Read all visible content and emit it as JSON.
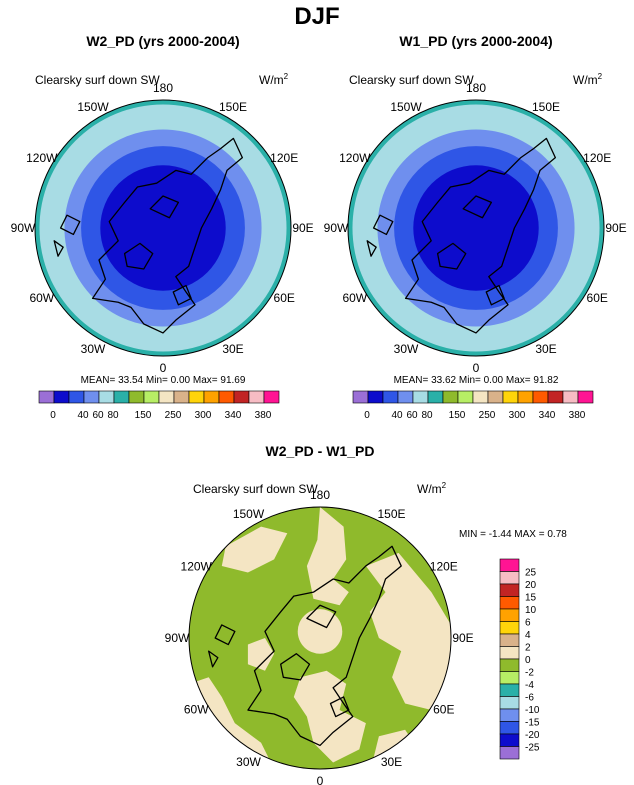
{
  "chart_data": {
    "type": "polar-map-panel",
    "title": "DJF",
    "maps": [
      {
        "id": "p1",
        "title": "W2_PD (yrs 2000-2004)",
        "variable": "Clearsky surf down SW",
        "units": "W/m",
        "units_sup": "2",
        "lon_labels": [
          "180",
          "150E",
          "120E",
          "90E",
          "60E",
          "30E",
          "0",
          "30W",
          "60W",
          "90W",
          "120W",
          "150W"
        ],
        "stats": {
          "mean_label": "MEAN=",
          "mean": "33.54",
          "min_label": "Min=",
          "min": "0.00",
          "max_label": "Max=",
          "max": "91.69"
        },
        "rings": [
          {
            "outer": 1.0,
            "color": "#2ab0a8"
          },
          {
            "outer": 0.965,
            "color": "#a8dce4"
          },
          {
            "outer": 0.77,
            "color": "#6f8fee"
          },
          {
            "outer": 0.64,
            "color": "#2f56e6"
          },
          {
            "outer": 0.49,
            "color": "#0d0ccc"
          }
        ]
      },
      {
        "id": "p2",
        "title": "W1_PD (yrs 2000-2004)",
        "variable": "Clearsky surf down SW",
        "units": "W/m",
        "units_sup": "2",
        "lon_labels": [
          "180",
          "150E",
          "120E",
          "90E",
          "60E",
          "30E",
          "0",
          "30W",
          "60W",
          "90W",
          "120W",
          "150W"
        ],
        "stats": {
          "mean_label": "MEAN=",
          "mean": "33.62",
          "min_label": "Min=",
          "min": "0.00",
          "max_label": "Max=",
          "max": "91.82"
        },
        "rings": [
          {
            "outer": 1.0,
            "color": "#2ab0a8"
          },
          {
            "outer": 0.965,
            "color": "#a8dce4"
          },
          {
            "outer": 0.77,
            "color": "#6f8fee"
          },
          {
            "outer": 0.64,
            "color": "#2f56e6"
          },
          {
            "outer": 0.49,
            "color": "#0d0ccc"
          }
        ]
      },
      {
        "id": "p3",
        "title": "W2_PD - W1_PD",
        "variable": "Clearsky surf down SW",
        "units": "W/m",
        "units_sup": "2",
        "lon_labels": [
          "180",
          "150E",
          "120E",
          "90E",
          "60E",
          "30E",
          "0",
          "30W",
          "60W",
          "90W",
          "120W",
          "150W"
        ],
        "min_max_text": "MIN =  -1.44 MAX =  0.78",
        "base_color": "#8fba2c",
        "patch_color": "#f4e5c3"
      }
    ],
    "colorbar_abs": {
      "colors": [
        "#9b6fd6",
        "#0d0ccc",
        "#2f56e6",
        "#6f8fee",
        "#a8dce4",
        "#2ab0a8",
        "#8fba2c",
        "#b7ee65",
        "#f4e5c3",
        "#d9b28a",
        "#ffd40a",
        "#ffa200",
        "#ff5a00",
        "#c22424",
        "#f7bcc4",
        "#ff1493"
      ],
      "tick_labels": [
        "0",
        "40",
        "60",
        "80",
        "150",
        "250",
        "300",
        "340",
        "380"
      ]
    },
    "colorbar_diff": {
      "levels": [
        "25",
        "20",
        "15",
        "10",
        "6",
        "4",
        "2",
        "0",
        "-2",
        "-4",
        "-6",
        "-10",
        "-15",
        "-20",
        "-25"
      ],
      "colors": [
        "#ff1493",
        "#f7bcc4",
        "#c22424",
        "#ff5a00",
        "#ffa200",
        "#ffd40a",
        "#d9b28a",
        "#f4e5c3",
        "#8fba2c",
        "#b7ee65",
        "#2ab0a8",
        "#a8dce4",
        "#6f8fee",
        "#2f56e6",
        "#0d0ccc",
        "#9b6fd6"
      ]
    }
  }
}
